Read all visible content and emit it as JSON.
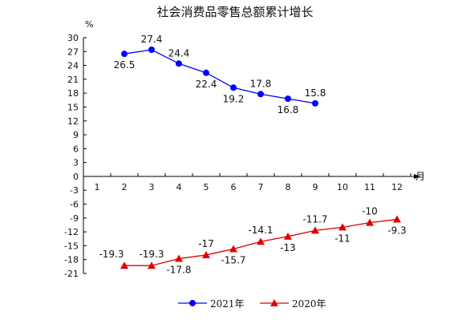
{
  "chart_data": {
    "type": "line",
    "title": "社会消费品零售总额累计增长",
    "ylabel": "%",
    "xlabel": "月",
    "ylim": [
      -21,
      30
    ],
    "yticks": [
      30,
      27,
      24,
      21,
      18,
      15,
      12,
      9,
      6,
      3,
      0,
      -3,
      -6,
      -9,
      -12,
      -15,
      -18,
      -21
    ],
    "xticks": [
      "1",
      "2",
      "3",
      "4",
      "5",
      "6",
      "7",
      "8",
      "9",
      "10",
      "11",
      "12"
    ],
    "series": [
      {
        "name": "2021年",
        "color": "#0000ff",
        "marker": "circle",
        "x": [
          2,
          3,
          4,
          5,
          6,
          7,
          8,
          9
        ],
        "values": [
          26.5,
          27.4,
          24.4,
          22.4,
          19.2,
          17.8,
          16.8,
          15.8
        ],
        "labels": [
          "26.5",
          "27.4",
          "24.4",
          "22.4",
          "19.2",
          "17.8",
          "16.8",
          "15.8"
        ]
      },
      {
        "name": "2020年",
        "color": "#e00000",
        "marker": "triangle",
        "x": [
          2,
          3,
          4,
          5,
          6,
          7,
          8,
          9,
          10,
          11,
          12
        ],
        "values": [
          -19.3,
          -19.3,
          -17.8,
          -17,
          -15.7,
          -14.1,
          -13,
          -11.7,
          -11,
          -10,
          -9.3
        ],
        "labels": [
          "-19.3",
          "-19.3",
          "-17.8",
          "-17",
          "-15.7",
          "-14.1",
          "-13",
          "-11.7",
          "-11",
          "-10",
          "-9.3"
        ]
      }
    ],
    "legend_position": "bottom"
  }
}
